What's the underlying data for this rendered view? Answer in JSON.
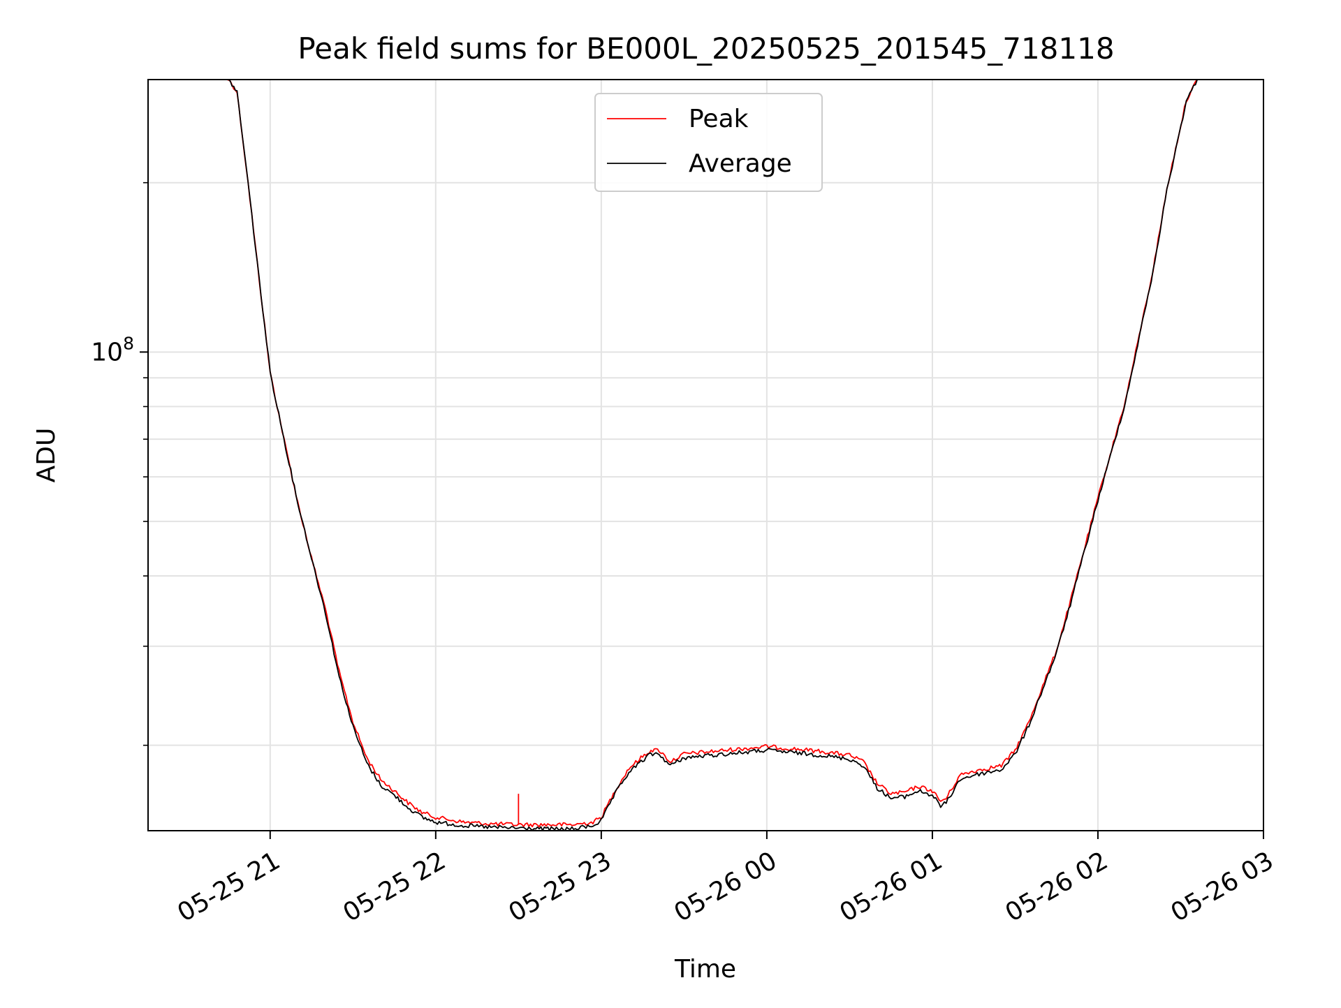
{
  "chart_data": {
    "type": "line",
    "title": "Peak field sums for BE000L_20250525_201545_718118",
    "xlabel": "Time",
    "ylabel": "ADU",
    "yscale": "log",
    "ylim": [
      14100000,
      305000000
    ],
    "xlim": [
      "2025-05-25 20:15:45",
      "2025-05-26 03:00:00"
    ],
    "x_ticks": [
      {
        "value": "2025-05-25 21:00",
        "label": "05-25 21"
      },
      {
        "value": "2025-05-25 22:00",
        "label": "05-25 22"
      },
      {
        "value": "2025-05-25 23:00",
        "label": "05-25 23"
      },
      {
        "value": "2025-05-26 00:00",
        "label": "05-26 00"
      },
      {
        "value": "2025-05-26 01:00",
        "label": "05-26 01"
      },
      {
        "value": "2025-05-26 02:00",
        "label": "05-26 02"
      },
      {
        "value": "2025-05-26 03:00",
        "label": "05-26 03"
      }
    ],
    "y_major_ticks": [
      {
        "value": 100000000,
        "base": "10",
        "exp": "8"
      }
    ],
    "y_minor_ticks": [
      20000000,
      30000000,
      40000000,
      50000000,
      60000000,
      70000000,
      80000000,
      90000000,
      200000000
    ],
    "grid": true,
    "legend_position": "upper-center",
    "series": [
      {
        "name": "Peak",
        "color": "#ff0000",
        "points": [
          [
            "2025-05-25 20:15:45",
            305000000
          ],
          [
            "2025-05-25 20:45",
            305000000
          ],
          [
            "2025-05-25 20:48",
            290000000
          ],
          [
            "2025-05-25 20:52",
            200000000
          ],
          [
            "2025-05-25 20:56",
            135000000
          ],
          [
            "2025-05-25 21:00",
            92000000
          ],
          [
            "2025-05-25 21:05",
            70000000
          ],
          [
            "2025-05-25 21:10",
            54000000
          ],
          [
            "2025-05-25 21:15",
            43000000
          ],
          [
            "2025-05-25 21:20",
            35000000
          ],
          [
            "2025-05-25 21:25",
            27000000
          ],
          [
            "2025-05-25 21:30",
            22000000
          ],
          [
            "2025-05-25 21:35",
            19000000
          ],
          [
            "2025-05-25 21:40",
            17400000
          ],
          [
            "2025-05-25 21:45",
            16600000
          ],
          [
            "2025-05-25 21:50",
            15800000
          ],
          [
            "2025-05-25 21:55",
            15200000
          ],
          [
            "2025-05-25 22:00",
            14900000
          ],
          [
            "2025-05-25 22:10",
            14600000
          ],
          [
            "2025-05-25 22:20",
            14500000
          ],
          [
            "2025-05-25 22:30",
            14450000
          ],
          [
            "2025-05-25 22:40",
            14450000
          ],
          [
            "2025-05-25 22:50",
            14450000
          ],
          [
            "2025-05-25 22:57",
            14600000
          ],
          [
            "2025-05-25 23:00",
            14900000
          ],
          [
            "2025-05-25 23:05",
            16600000
          ],
          [
            "2025-05-25 23:10",
            18200000
          ],
          [
            "2025-05-25 23:15",
            19100000
          ],
          [
            "2025-05-25 23:18",
            19600000
          ],
          [
            "2025-05-25 23:21",
            19600000
          ],
          [
            "2025-05-25 23:25",
            18700000
          ],
          [
            "2025-05-25 23:30",
            19300000
          ],
          [
            "2025-05-25 23:40",
            19500000
          ],
          [
            "2025-05-25 23:50",
            19700000
          ],
          [
            "2025-05-26 00:00",
            19900000
          ],
          [
            "2025-05-26 00:10",
            19700000
          ],
          [
            "2025-05-26 00:20",
            19500000
          ],
          [
            "2025-05-26 00:30",
            19200000
          ],
          [
            "2025-05-26 00:35",
            18700000
          ],
          [
            "2025-05-26 00:40",
            17100000
          ],
          [
            "2025-05-26 00:45",
            16400000
          ],
          [
            "2025-05-26 00:50",
            16500000
          ],
          [
            "2025-05-26 00:55",
            16900000
          ],
          [
            "2025-05-26 01:00",
            16600000
          ],
          [
            "2025-05-26 01:03",
            15900000
          ],
          [
            "2025-05-26 01:05",
            16100000
          ],
          [
            "2025-05-26 01:10",
            17700000
          ],
          [
            "2025-05-26 01:15",
            18000000
          ],
          [
            "2025-05-26 01:20",
            18200000
          ],
          [
            "2025-05-26 01:25",
            18400000
          ],
          [
            "2025-05-26 01:30",
            19600000
          ],
          [
            "2025-05-26 01:35",
            22000000
          ],
          [
            "2025-05-26 01:40",
            25500000
          ],
          [
            "2025-05-26 01:45",
            29500000
          ],
          [
            "2025-05-26 01:50",
            36000000
          ],
          [
            "2025-05-26 02:00",
            55000000
          ],
          [
            "2025-05-26 02:10",
            82000000
          ],
          [
            "2025-05-26 02:20",
            140000000
          ],
          [
            "2025-05-26 02:25",
            195000000
          ],
          [
            "2025-05-26 02:32",
            280000000
          ],
          [
            "2025-05-26 02:36",
            305000000
          ],
          [
            "2025-05-26 03:00",
            305000000
          ]
        ]
      },
      {
        "name": "Average",
        "color": "#000000",
        "points": [
          [
            "2025-05-25 20:15:45",
            305000000
          ],
          [
            "2025-05-25 20:45",
            305000000
          ],
          [
            "2025-05-25 20:48",
            290000000
          ],
          [
            "2025-05-25 20:52",
            200000000
          ],
          [
            "2025-05-25 20:56",
            135000000
          ],
          [
            "2025-05-25 21:00",
            92000000
          ],
          [
            "2025-05-25 21:05",
            70000000
          ],
          [
            "2025-05-25 21:10",
            54000000
          ],
          [
            "2025-05-25 21:15",
            43000000
          ],
          [
            "2025-05-25 21:20",
            34500000
          ],
          [
            "2025-05-25 21:25",
            26500000
          ],
          [
            "2025-05-25 21:30",
            21600000
          ],
          [
            "2025-05-25 21:35",
            18600000
          ],
          [
            "2025-05-25 21:40",
            17000000
          ],
          [
            "2025-05-25 21:45",
            16300000
          ],
          [
            "2025-05-25 21:50",
            15500000
          ],
          [
            "2025-05-25 21:55",
            14900000
          ],
          [
            "2025-05-25 22:00",
            14600000
          ],
          [
            "2025-05-25 22:10",
            14400000
          ],
          [
            "2025-05-25 22:20",
            14300000
          ],
          [
            "2025-05-25 22:30",
            14250000
          ],
          [
            "2025-05-25 22:40",
            14200000
          ],
          [
            "2025-05-25 22:50",
            14200000
          ],
          [
            "2025-05-25 22:57",
            14400000
          ],
          [
            "2025-05-25 23:00",
            14700000
          ],
          [
            "2025-05-25 23:05",
            16400000
          ],
          [
            "2025-05-25 23:10",
            17900000
          ],
          [
            "2025-05-25 23:15",
            18800000
          ],
          [
            "2025-05-25 23:18",
            19300000
          ],
          [
            "2025-05-25 23:21",
            19300000
          ],
          [
            "2025-05-25 23:25",
            18400000
          ],
          [
            "2025-05-25 23:30",
            19000000
          ],
          [
            "2025-05-25 23:40",
            19200000
          ],
          [
            "2025-05-25 23:50",
            19400000
          ],
          [
            "2025-05-26 00:00",
            19600000
          ],
          [
            "2025-05-26 00:10",
            19400000
          ],
          [
            "2025-05-26 00:20",
            19200000
          ],
          [
            "2025-05-26 00:30",
            18900000
          ],
          [
            "2025-05-26 00:35",
            18400000
          ],
          [
            "2025-05-26 00:40",
            16800000
          ],
          [
            "2025-05-26 00:45",
            16100000
          ],
          [
            "2025-05-26 00:50",
            16200000
          ],
          [
            "2025-05-26 00:55",
            16600000
          ],
          [
            "2025-05-26 01:00",
            16300000
          ],
          [
            "2025-05-26 01:03",
            15600000
          ],
          [
            "2025-05-26 01:05",
            15800000
          ],
          [
            "2025-05-26 01:10",
            17400000
          ],
          [
            "2025-05-26 01:15",
            17700000
          ],
          [
            "2025-05-26 01:20",
            17900000
          ],
          [
            "2025-05-26 01:25",
            18100000
          ],
          [
            "2025-05-26 01:30",
            19300000
          ],
          [
            "2025-05-26 01:35",
            21700000
          ],
          [
            "2025-05-26 01:40",
            25200000
          ],
          [
            "2025-05-26 01:45",
            29200000
          ],
          [
            "2025-05-26 01:50",
            35600000
          ],
          [
            "2025-05-26 02:00",
            54500000
          ],
          [
            "2025-05-26 02:10",
            81500000
          ],
          [
            "2025-05-26 02:20",
            139000000
          ],
          [
            "2025-05-26 02:25",
            194000000
          ],
          [
            "2025-05-26 02:32",
            279000000
          ],
          [
            "2025-05-26 02:36",
            305000000
          ],
          [
            "2025-05-26 03:00",
            305000000
          ]
        ]
      }
    ],
    "annotations": [
      {
        "type": "spike",
        "series": "Peak",
        "x": "2025-05-25 22:30",
        "y": 16400000
      }
    ]
  }
}
